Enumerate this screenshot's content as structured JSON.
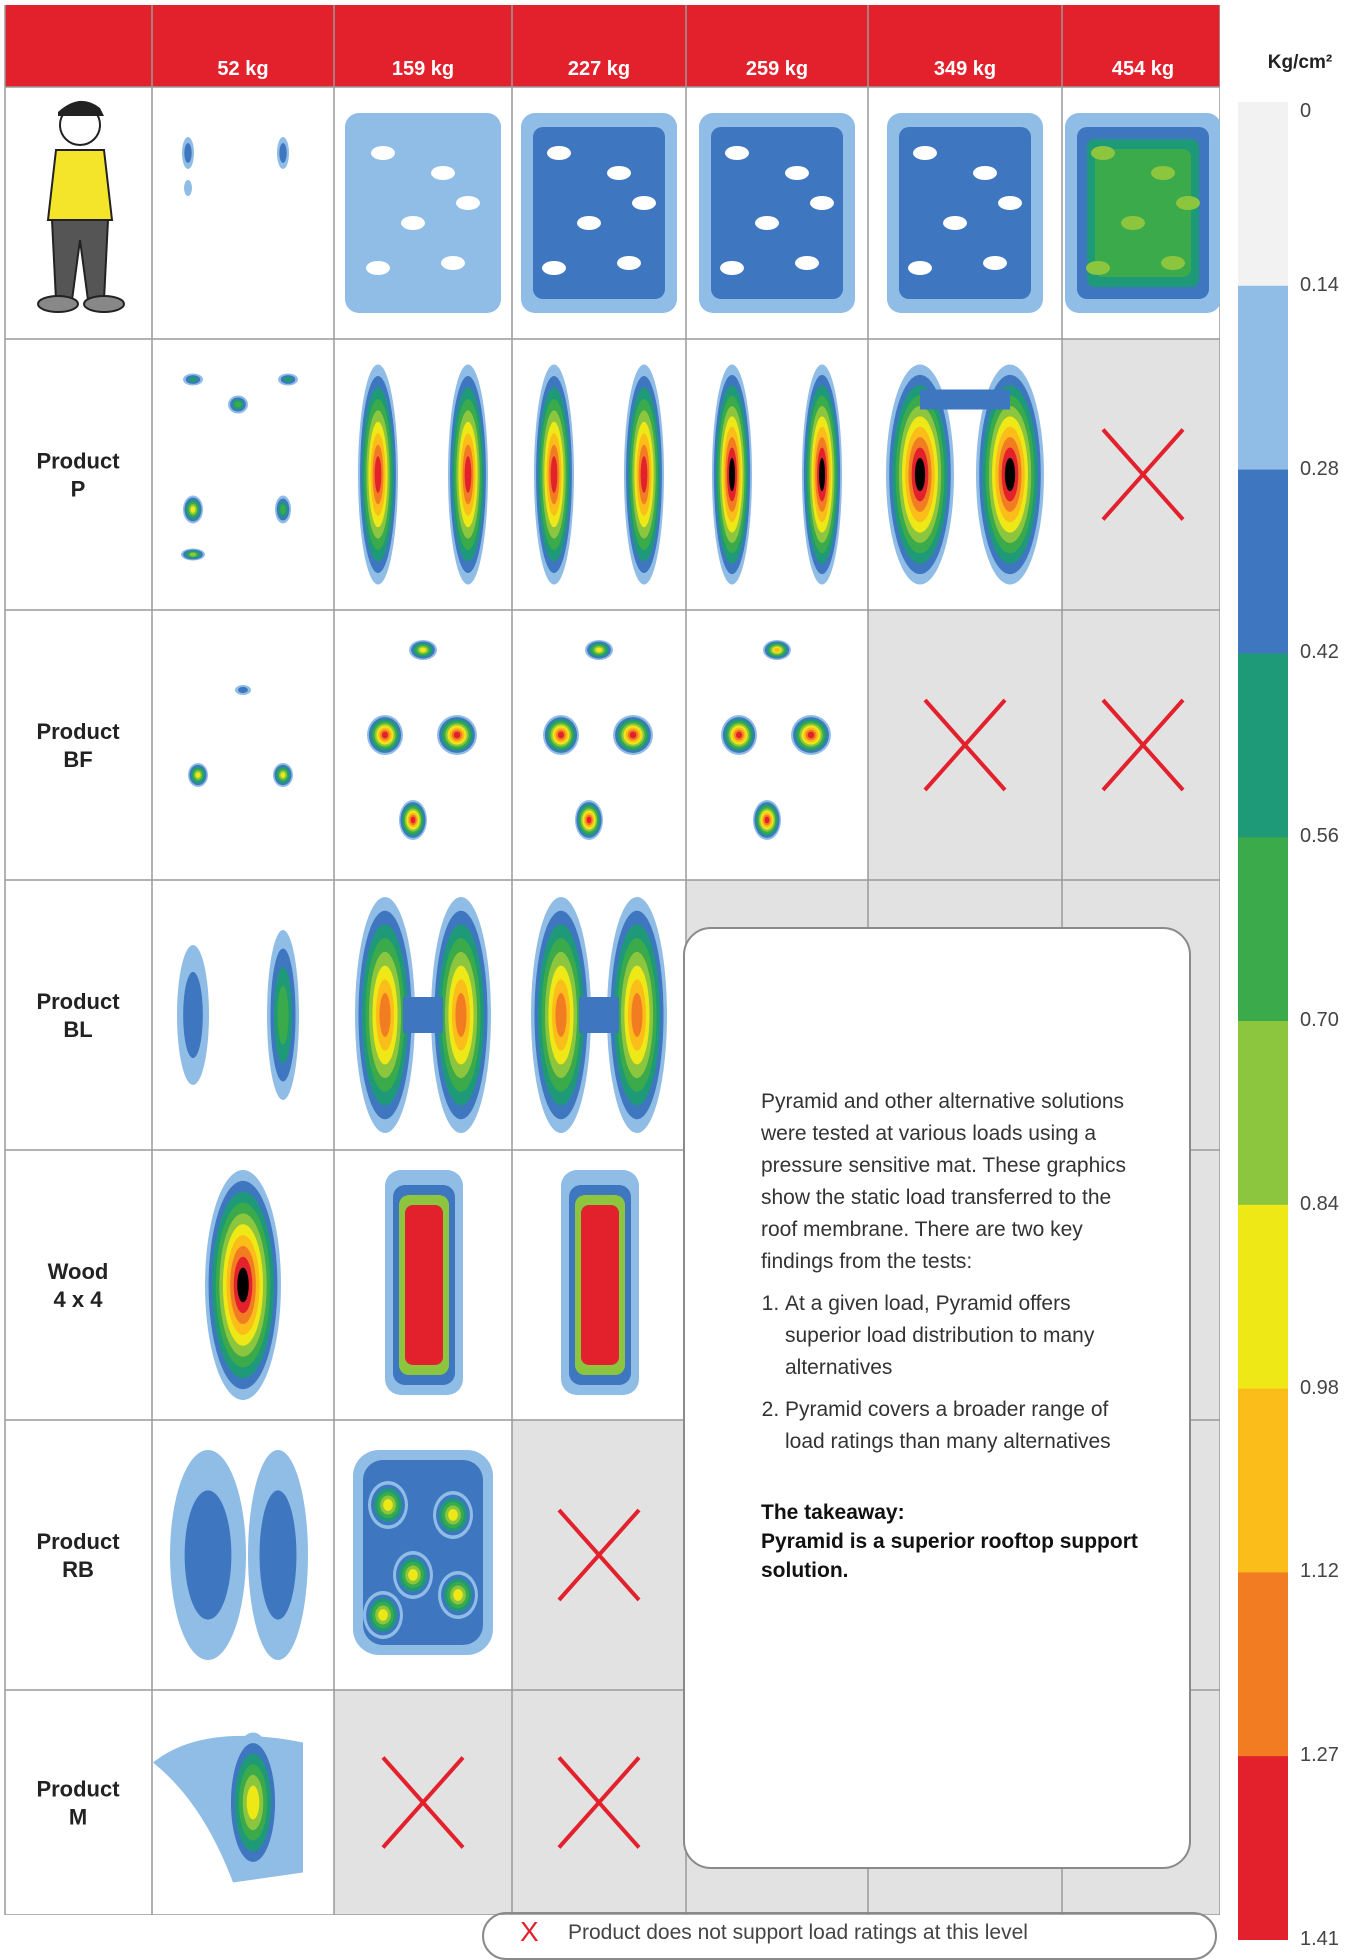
{
  "header": {
    "bg": "#e3212d"
  },
  "chart_data": {
    "type": "heatmap",
    "title": "",
    "loads": [
      "52 kg",
      "159 kg",
      "227 kg",
      "259 kg",
      "349 kg",
      "454 kg"
    ],
    "rows": [
      {
        "label": [
          "",
          ""
        ],
        "kind": "pyramid",
        "cells": [
          "t",
          "p",
          "p",
          "p",
          "p",
          "p"
        ]
      },
      {
        "label": [
          "Product",
          "P"
        ],
        "kind": "twin",
        "cells": [
          "d",
          "d",
          "d",
          "d",
          "d",
          "x"
        ]
      },
      {
        "label": [
          "Product",
          "BF"
        ],
        "kind": "tri",
        "cells": [
          "d",
          "d",
          "d",
          "d",
          "x",
          "x"
        ]
      },
      {
        "label": [
          "Product",
          "BL"
        ],
        "kind": "bl",
        "cells": [
          "d",
          "d",
          "d",
          "n",
          "n",
          "n"
        ]
      },
      {
        "label": [
          "Wood",
          "4 x 4"
        ],
        "kind": "wood",
        "cells": [
          "d",
          "d",
          "d",
          "n",
          "n",
          "n"
        ]
      },
      {
        "label": [
          "Product",
          "RB"
        ],
        "kind": "rb",
        "cells": [
          "d",
          "d",
          "x",
          "n",
          "n",
          "n"
        ]
      },
      {
        "label": [
          "Product",
          "M"
        ],
        "kind": "m",
        "cells": [
          "d",
          "x",
          "x",
          "n",
          "n",
          "n"
        ]
      }
    ],
    "colorscale": {
      "unit": "Kg/cm²",
      "ticks": [
        "0",
        "0.14",
        "0.28",
        "0.42",
        "0.56",
        "0.70",
        "0.84",
        "0.98",
        "1.12",
        "1.27",
        "1.41"
      ],
      "colors": [
        "#f2f2f2",
        "#8fbde6",
        "#3f76c0",
        "#1e9a78",
        "#3aaa4a",
        "#8cc63f",
        "#eee816",
        "#fbbd19",
        "#f27c22",
        "#e3212d"
      ]
    }
  },
  "callout": {
    "intro": "Pyramid and other alternative solutions were tested at various loads using a pressure sensitive mat. These graphics show the static load transferred to the roof membrane. There are two key findings from the tests:",
    "findings": [
      "At a given load, Pyramid offers superior load distribution to many alternatives",
      "Pyramid covers a broader range of load ratings than many alternatives"
    ],
    "takeaway_heading": "The takeaway:",
    "takeaway_body": "Pyramid is a superior rooftop support solution."
  },
  "legend": {
    "mark": "X",
    "text": "Product does not support load ratings at this level"
  }
}
